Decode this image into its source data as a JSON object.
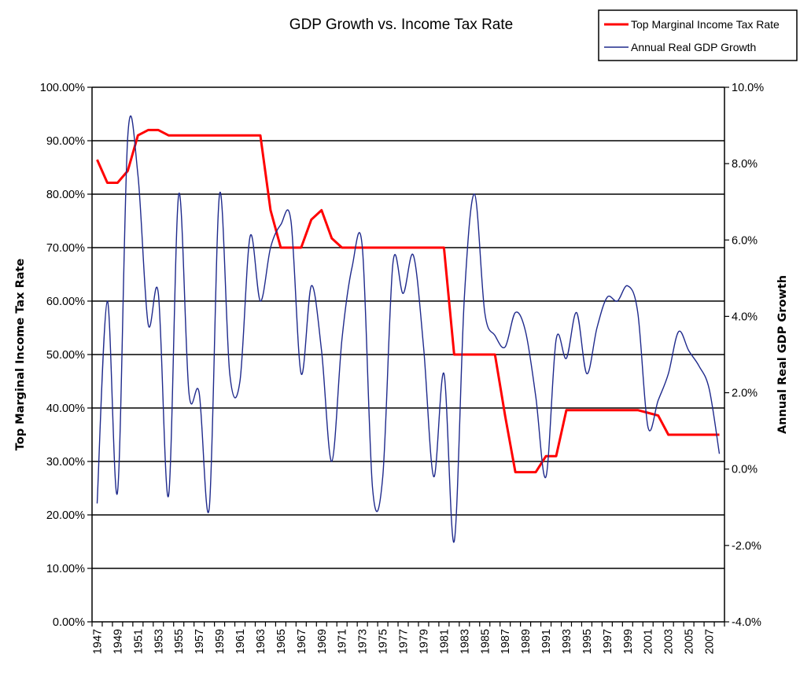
{
  "chart_data": {
    "type": "line",
    "title": "GDP Growth vs. Income Tax Rate",
    "xlabel": "",
    "ylabel": "Top Marginal Income Tax Rate",
    "y2label": "Annual Real GDP Growth",
    "legend_position": "top-right",
    "grid": true,
    "x": [
      1947,
      1948,
      1949,
      1950,
      1951,
      1952,
      1953,
      1954,
      1955,
      1956,
      1957,
      1958,
      1959,
      1960,
      1961,
      1962,
      1963,
      1964,
      1965,
      1966,
      1967,
      1968,
      1969,
      1970,
      1971,
      1972,
      1973,
      1974,
      1975,
      1976,
      1977,
      1978,
      1979,
      1980,
      1981,
      1982,
      1983,
      1984,
      1985,
      1986,
      1987,
      1988,
      1989,
      1990,
      1991,
      1992,
      1993,
      1994,
      1995,
      1996,
      1997,
      1998,
      1999,
      2000,
      2001,
      2002,
      2003,
      2004,
      2005,
      2006,
      2007,
      2008
    ],
    "x_tick_labels": [
      "1947",
      "1949",
      "1951",
      "1953",
      "1955",
      "1957",
      "1959",
      "1961",
      "1963",
      "1965",
      "1967",
      "1969",
      "1971",
      "1973",
      "1975",
      "1977",
      "1979",
      "1981",
      "1983",
      "1985",
      "1987",
      "1989",
      "1991",
      "1993",
      "1995",
      "1997",
      "1999",
      "2001",
      "2003",
      "2005",
      "2007"
    ],
    "yticks_left": [
      "0.00%",
      "10.00%",
      "20.00%",
      "30.00%",
      "40.00%",
      "50.00%",
      "60.00%",
      "70.00%",
      "80.00%",
      "90.00%",
      "100.00%"
    ],
    "ylim_left": [
      0,
      100
    ],
    "yticks_right": [
      "-4.0%",
      "-2.0%",
      "0.0%",
      "2.0%",
      "4.0%",
      "6.0%",
      "8.0%",
      "10.0%"
    ],
    "ylim_right": [
      -4,
      10
    ],
    "series": [
      {
        "name": "Top Marginal Income Tax Rate",
        "axis": "left",
        "color": "#ff0000",
        "values": [
          86.45,
          82.13,
          82.13,
          84.36,
          91,
          92,
          92,
          91,
          91,
          91,
          91,
          91,
          91,
          91,
          91,
          91,
          91,
          77,
          70,
          70,
          70,
          75.25,
          77,
          71.75,
          70,
          70,
          70,
          70,
          70,
          70,
          70,
          70,
          70,
          70,
          70,
          50,
          50,
          50,
          50,
          50,
          38.5,
          28,
          28,
          28,
          31,
          31,
          39.6,
          39.6,
          39.6,
          39.6,
          39.6,
          39.6,
          39.6,
          39.6,
          39.1,
          38.6,
          35,
          35,
          35,
          35,
          35,
          35
        ]
      },
      {
        "name": "Annual Real GDP Growth",
        "axis": "right",
        "color": "#1f2a8c",
        "values": [
          -0.9,
          4.4,
          -0.6,
          8.7,
          7.7,
          3.8,
          4.6,
          -0.7,
          7.2,
          2.0,
          2.0,
          -1.0,
          7.2,
          2.5,
          2.3,
          6.1,
          4.4,
          5.8,
          6.4,
          6.5,
          2.5,
          4.8,
          3.1,
          0.2,
          3.4,
          5.3,
          5.8,
          -0.5,
          -0.2,
          5.4,
          4.6,
          5.6,
          3.2,
          -0.2,
          2.5,
          -1.9,
          4.5,
          7.2,
          4.1,
          3.5,
          3.2,
          4.1,
          3.6,
          1.9,
          -0.2,
          3.4,
          2.9,
          4.1,
          2.5,
          3.7,
          4.5,
          4.4,
          4.8,
          4.1,
          1.1,
          1.8,
          2.5,
          3.6,
          3.1,
          2.7,
          2.1,
          0.4
        ]
      }
    ]
  },
  "legend": {
    "items": [
      {
        "label": "Top Marginal Income Tax Rate",
        "color": "#ff0000"
      },
      {
        "label": "Annual Real GDP Growth",
        "color": "#1f2a8c"
      }
    ]
  }
}
